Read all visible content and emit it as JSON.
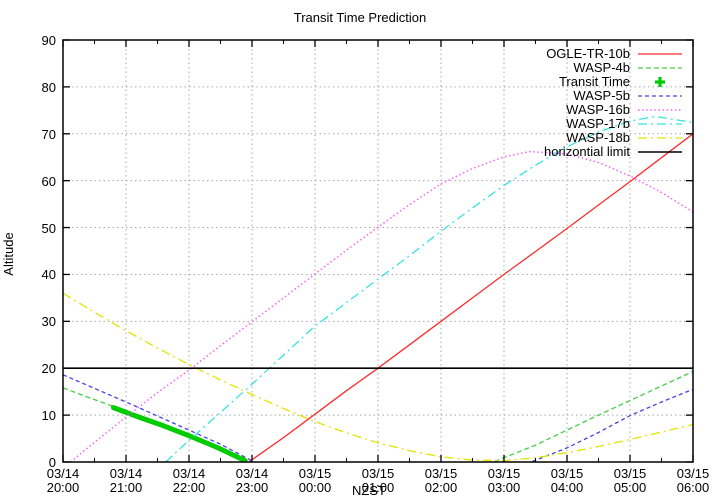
{
  "title": "Transit Time Prediction",
  "axes": {
    "xlabel": "NZST",
    "ylabel": "Altitude",
    "ylim": [
      0,
      90
    ],
    "yticks": [
      0,
      10,
      20,
      30,
      40,
      50,
      60,
      70,
      80,
      90
    ],
    "xlim_hours_after_first_tick": [
      0,
      10
    ],
    "xticks": [
      {
        "date": "03/14",
        "time": "20:00"
      },
      {
        "date": "03/14",
        "time": "21:00"
      },
      {
        "date": "03/14",
        "time": "22:00"
      },
      {
        "date": "03/14",
        "time": "23:00"
      },
      {
        "date": "03/15",
        "time": "00:00"
      },
      {
        "date": "03/15",
        "time": "01:00"
      },
      {
        "date": "03/15",
        "time": "02:00"
      },
      {
        "date": "03/15",
        "time": "03:00"
      },
      {
        "date": "03/15",
        "time": "04:00"
      },
      {
        "date": "03/15",
        "time": "05:00"
      },
      {
        "date": "03/15",
        "time": "06:00"
      }
    ],
    "grid": true
  },
  "legend": {
    "position": "top-right-inside",
    "entries": [
      "OGLE-TR-10b",
      "WASP-4b",
      "Transit Time",
      "WASP-5b",
      "WASP-16b",
      "WASP-17b",
      "WASP-18b",
      "horizontial limit"
    ]
  },
  "chart_data": {
    "type": "line",
    "x_unit": "hours after 03/14 20:00 NZST",
    "y_unit": "degrees altitude",
    "horizontal_limit_altitude": 20,
    "series": [
      {
        "name": "OGLE-TR-10b",
        "color": "#ff2a2a",
        "dash": "solid",
        "width": 1.3,
        "segments": [
          [
            [
              2.95,
              0
            ],
            [
              3.5,
              5.2
            ],
            [
              4,
              10.2
            ],
            [
              4.5,
              15.2
            ],
            [
              5,
              20
            ],
            [
              5.5,
              25
            ],
            [
              6,
              30
            ],
            [
              6.5,
              35
            ],
            [
              7,
              40
            ],
            [
              7.5,
              44.9
            ],
            [
              8,
              49.8
            ],
            [
              8.5,
              54.8
            ],
            [
              9,
              59.8
            ],
            [
              9.5,
              64.9
            ],
            [
              10,
              70
            ]
          ]
        ]
      },
      {
        "name": "WASP-4b",
        "color": "#46cc46",
        "dash": "dash",
        "width": 1.3,
        "segments": [
          [
            [
              0,
              15.8
            ],
            [
              0.5,
              13.3
            ],
            [
              1,
              10.9
            ],
            [
              1.5,
              8.3
            ],
            [
              2,
              5.6
            ],
            [
              2.5,
              2.9
            ],
            [
              2.87,
              0.1
            ]
          ],
          [
            [
              6.85,
              0.1
            ],
            [
              7.5,
              3.6
            ],
            [
              8,
              6.8
            ],
            [
              8.5,
              10
            ],
            [
              9,
              13.1
            ],
            [
              9.5,
              16.2
            ],
            [
              10,
              19.3
            ]
          ]
        ]
      },
      {
        "name": "Transit Time",
        "color": "#00cc00",
        "dash": "solid",
        "width": 5,
        "marker": "plus",
        "segments": [
          [
            [
              0.8,
              11.6
            ],
            [
              1.2,
              9.6
            ],
            [
              1.6,
              7.7
            ],
            [
              2,
              5.6
            ],
            [
              2.45,
              3.1
            ],
            [
              2.89,
              0.3
            ]
          ]
        ]
      },
      {
        "name": "WASP-5b",
        "color": "#4545e0",
        "dash": "dash2",
        "width": 1.3,
        "segments": [
          [
            [
              0,
              18.6
            ],
            [
              0.5,
              15.7
            ],
            [
              1,
              12.8
            ],
            [
              1.5,
              9.8
            ],
            [
              2,
              6.8
            ],
            [
              2.5,
              3.8
            ],
            [
              3.02,
              0.1
            ]
          ],
          [
            [
              7.45,
              0.1
            ],
            [
              8,
              3
            ],
            [
              8.5,
              6.3
            ],
            [
              9,
              9.9
            ],
            [
              9.5,
              12.8
            ],
            [
              10,
              15.5
            ]
          ]
        ]
      },
      {
        "name": "WASP-16b",
        "color": "#f263f2",
        "dash": "dot",
        "width": 1.5,
        "segments": [
          [
            [
              0.12,
              0
            ],
            [
              0.5,
              4.2
            ],
            [
              1,
              9.6
            ],
            [
              1.5,
              14.8
            ],
            [
              2,
              19.6
            ],
            [
              2.5,
              24.8
            ],
            [
              3,
              29.9
            ],
            [
              3.5,
              35
            ],
            [
              4,
              40.1
            ],
            [
              4.5,
              45.2
            ],
            [
              5,
              50.1
            ],
            [
              5.5,
              54.9
            ],
            [
              6,
              59.3
            ],
            [
              6.5,
              62.6
            ],
            [
              7,
              65.1
            ],
            [
              7.4,
              66.2
            ],
            [
              8,
              65.7
            ],
            [
              8.5,
              63.9
            ],
            [
              9,
              61
            ],
            [
              9.5,
              57.5
            ],
            [
              10,
              53.3
            ]
          ]
        ]
      },
      {
        "name": "WASP-17b",
        "color": "#3ae2e2",
        "dash": "dashdot",
        "width": 1.3,
        "segments": [
          [
            [
              1.63,
              0
            ],
            [
              2,
              4.6
            ],
            [
              2.5,
              10.6
            ],
            [
              3,
              16.6
            ],
            [
              3.5,
              22.8
            ],
            [
              4,
              29
            ],
            [
              4.5,
              34
            ],
            [
              5,
              39
            ],
            [
              5.5,
              44
            ],
            [
              6,
              49.2
            ],
            [
              6.5,
              54.2
            ],
            [
              7,
              59
            ],
            [
              7.5,
              63.3
            ],
            [
              8,
              67.2
            ],
            [
              8.5,
              70.4
            ],
            [
              9,
              72.7
            ],
            [
              9.4,
              73.7
            ],
            [
              10,
              72.4
            ]
          ]
        ]
      },
      {
        "name": "WASP-18b",
        "color": "#e3e300",
        "dash": "dashdot",
        "width": 1.3,
        "segments": [
          [
            [
              0,
              36
            ],
            [
              0.5,
              31.9
            ],
            [
              1,
              28
            ],
            [
              1.5,
              24.3
            ],
            [
              2,
              20.8
            ],
            [
              2.5,
              17.5
            ],
            [
              3,
              14.4
            ],
            [
              3.5,
              11.4
            ],
            [
              4,
              8.6
            ],
            [
              4.5,
              6.2
            ],
            [
              5,
              4.1
            ],
            [
              5.5,
              2.4
            ],
            [
              6,
              1.1
            ],
            [
              6.5,
              0.4
            ],
            [
              7,
              0.3
            ],
            [
              7.5,
              0.9
            ],
            [
              8,
              2
            ],
            [
              8.5,
              3.3
            ],
            [
              9,
              4.8
            ],
            [
              9.5,
              6.4
            ],
            [
              10,
              8
            ]
          ]
        ]
      },
      {
        "name": "horizontial limit",
        "color": "#000000",
        "dash": "solid",
        "width": 1.6,
        "segments": [
          [
            [
              0,
              20
            ],
            [
              10,
              20
            ]
          ]
        ]
      }
    ]
  }
}
